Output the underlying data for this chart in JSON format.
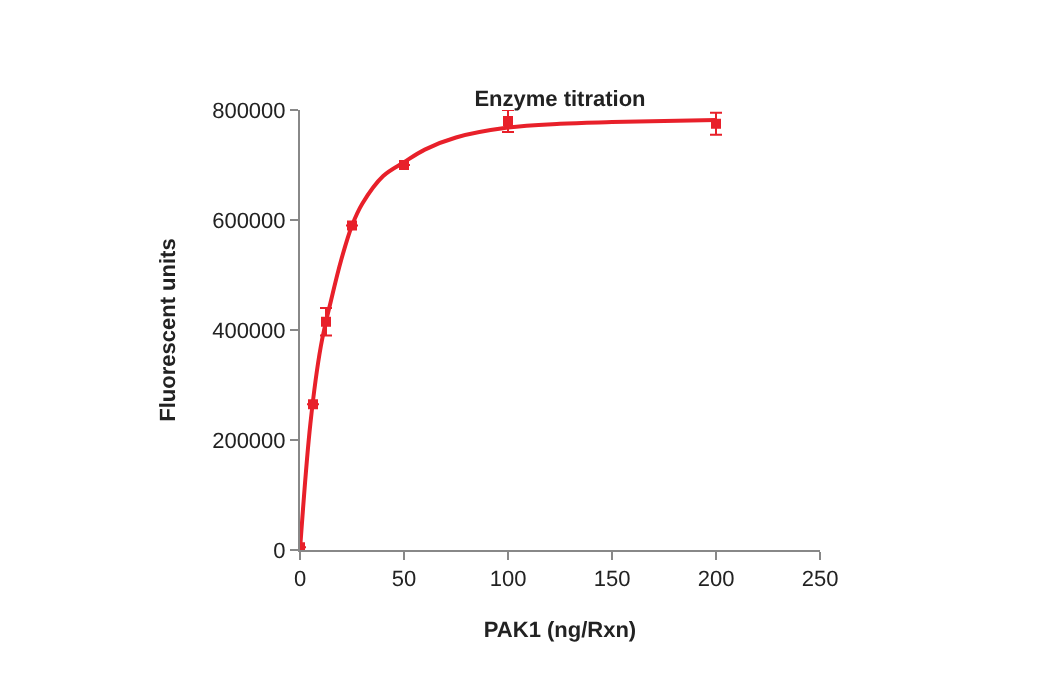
{
  "chart_data": {
    "type": "scatter",
    "title": "Enzyme titration",
    "xlabel": "PAK1 (ng/Rxn)",
    "ylabel": "Fluorescent units",
    "xlim": [
      0,
      250
    ],
    "xticks": [
      0,
      50,
      100,
      150,
      200,
      250
    ],
    "ylim": [
      0,
      800000
    ],
    "yticks": [
      0,
      200000,
      400000,
      600000,
      800000
    ],
    "marker": "square",
    "series": [
      {
        "color": "#e8202a",
        "x": [
          0,
          6.25,
          12.5,
          25,
          50,
          100,
          200
        ],
        "values": [
          5000,
          265000,
          415000,
          590000,
          700000,
          780000,
          775000
        ],
        "errors": [
          null,
          null,
          25000,
          null,
          null,
          20000,
          20000
        ]
      },
      {
        "type": "line",
        "marker": "none",
        "color": "#e8202a",
        "x": [
          0,
          5,
          10,
          15,
          20,
          25,
          30,
          40,
          50,
          60,
          75,
          100,
          125,
          150,
          200
        ],
        "values": [
          0,
          230000,
          370000,
          455000,
          530000,
          590000,
          630000,
          680000,
          705000,
          728000,
          750000,
          768000,
          775000,
          778000,
          782000
        ]
      }
    ]
  }
}
